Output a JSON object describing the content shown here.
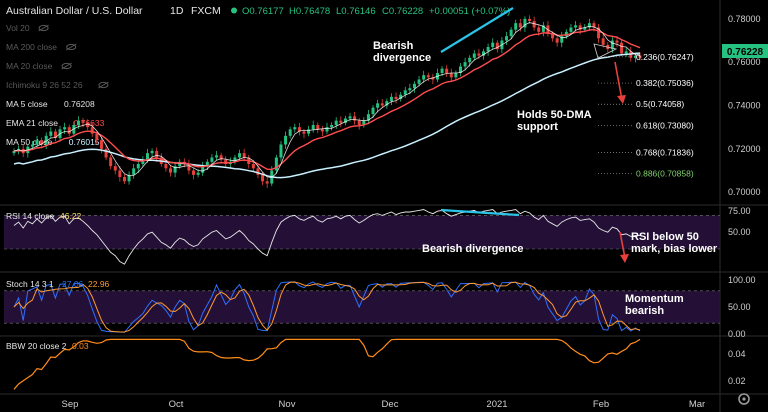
{
  "header": {
    "symbol": "Australian Dollar / U.S. Dollar",
    "interval": "1D",
    "exchange": "FXCM",
    "o": "O0.76177",
    "h": "H0.76478",
    "l": "L0.76146",
    "c": "C0.76228",
    "change": "+0.00051 (+0.07%)"
  },
  "indicators": [
    {
      "label": "Vol 20",
      "value": "",
      "color": "#555555",
      "hidden": true
    },
    {
      "label": "MA 200 close",
      "value": "",
      "color": "#555555",
      "hidden": true
    },
    {
      "label": "MA 20 close",
      "value": "",
      "color": "#555555",
      "hidden": true
    },
    {
      "label": "Ichimoku 9 26 52 26",
      "value": "",
      "color": "#555555",
      "hidden": true
    },
    {
      "label": "MA 5 close",
      "value": "0.76208",
      "color": "#e0e0e0",
      "hidden": false
    },
    {
      "label": "EMA 21 close",
      "value": "0.76633",
      "color": "#ff4d4d",
      "hidden": false
    },
    {
      "label": "MA 50 close",
      "value": "0.76015",
      "color": "#c8f0ff",
      "hidden": false
    }
  ],
  "annotations": {
    "bearish_top": "Bearish\ndivergence",
    "holds_50dma": "Holds 50-DMA\nsupport",
    "rsi_divergence": "Bearish divergence",
    "rsi_bias": "RSI below 50\nmark, bias lower",
    "stoch_bias": "Momentum\nbearish"
  },
  "price_badge": "0.76228",
  "colors": {
    "up": "#26c281",
    "down": "#e8413c",
    "ema21": "#ff4d4d",
    "ma50": "#c8f0ff",
    "ma5": "#ffffff",
    "rsi": "#e6e6e6",
    "stoch_k": "#2f6fff",
    "stoch_d": "#ff9a2e",
    "bbw": "#ff8c1a",
    "divergence": "#2bc4e8",
    "arrow": "#e8413c",
    "band": "#2a1340"
  },
  "chart_data": [
    {
      "type": "candlestick",
      "title": "Australian Dollar / U.S. Dollar 1D FXCM",
      "x_ticks": [
        "Sep",
        "Oct",
        "Nov",
        "Dec",
        "2021",
        "Feb",
        "Mar"
      ],
      "ylim": [
        0.695,
        0.785
      ],
      "y_ticks": [
        "0.78000",
        "0.76000",
        "0.74000",
        "0.72000",
        "0.70000"
      ],
      "close": [
        0.719,
        0.72,
        0.718,
        0.721,
        0.722,
        0.724,
        0.722,
        0.726,
        0.728,
        0.725,
        0.729,
        0.73,
        0.727,
        0.731,
        0.733,
        0.732,
        0.73,
        0.727,
        0.724,
        0.72,
        0.716,
        0.712,
        0.71,
        0.707,
        0.705,
        0.708,
        0.711,
        0.713,
        0.715,
        0.718,
        0.719,
        0.716,
        0.713,
        0.711,
        0.709,
        0.712,
        0.714,
        0.713,
        0.71,
        0.708,
        0.709,
        0.712,
        0.714,
        0.716,
        0.717,
        0.715,
        0.713,
        0.714,
        0.716,
        0.718,
        0.716,
        0.713,
        0.711,
        0.708,
        0.705,
        0.704,
        0.71,
        0.716,
        0.722,
        0.726,
        0.729,
        0.73,
        0.728,
        0.727,
        0.729,
        0.731,
        0.729,
        0.728,
        0.73,
        0.731,
        0.733,
        0.732,
        0.734,
        0.735,
        0.733,
        0.731,
        0.733,
        0.736,
        0.739,
        0.741,
        0.74,
        0.742,
        0.744,
        0.743,
        0.745,
        0.747,
        0.748,
        0.75,
        0.752,
        0.754,
        0.753,
        0.752,
        0.755,
        0.757,
        0.755,
        0.753,
        0.755,
        0.758,
        0.76,
        0.762,
        0.764,
        0.763,
        0.765,
        0.767,
        0.769,
        0.766,
        0.77,
        0.772,
        0.775,
        0.778,
        0.776,
        0.78,
        0.779,
        0.776,
        0.774,
        0.777,
        0.773,
        0.771,
        0.769,
        0.772,
        0.774,
        0.776,
        0.777,
        0.775,
        0.776,
        0.778,
        0.776,
        0.771,
        0.768,
        0.766,
        0.77,
        0.769,
        0.764,
        0.765,
        0.762,
        0.763,
        0.762
      ],
      "ema21_last": 0.76633,
      "ma50_last": 0.76015,
      "ma5_last": 0.76208,
      "fib_levels": [
        {
          "label": "0.236(0.76247)",
          "value": 0.76247,
          "color": "#ffffff"
        },
        {
          "label": "0.382(0.75036)",
          "value": 0.75036,
          "color": "#ffffff"
        },
        {
          "label": "0.5(0.74058)",
          "value": 0.74058,
          "color": "#ffffff"
        },
        {
          "label": "0.618(0.73080)",
          "value": 0.7308,
          "color": "#ffffff"
        },
        {
          "label": "0.768(0.71836)",
          "value": 0.71836,
          "color": "#ffffff"
        },
        {
          "label": "0.886(0.70858)",
          "value": 0.70858,
          "color": "#7fd16b"
        }
      ]
    },
    {
      "type": "line",
      "title": "RSI 14 close",
      "value_label": "46.22",
      "ylim": [
        5,
        80
      ],
      "y_ticks": [
        "75.00",
        "50.00"
      ],
      "band": [
        30,
        70
      ],
      "values": [
        58,
        62,
        55,
        63,
        60,
        66,
        61,
        67,
        70,
        63,
        68,
        69,
        60,
        66,
        67,
        63,
        58,
        52,
        47,
        40,
        33,
        26,
        22,
        15,
        12,
        22,
        30,
        37,
        42,
        48,
        50,
        44,
        38,
        35,
        31,
        38,
        43,
        41,
        36,
        33,
        35,
        42,
        46,
        50,
        52,
        47,
        42,
        44,
        48,
        52,
        47,
        40,
        36,
        30,
        25,
        22,
        38,
        52,
        62,
        66,
        69,
        70,
        66,
        64,
        67,
        69,
        64,
        62,
        66,
        67,
        69,
        66,
        69,
        70,
        65,
        61,
        64,
        68,
        71,
        72,
        70,
        72,
        74,
        71,
        73,
        74,
        74,
        75,
        76,
        77,
        74,
        72,
        75,
        76,
        72,
        69,
        71,
        73,
        74,
        75,
        76,
        73,
        75,
        76,
        77,
        72,
        74,
        75,
        76,
        77,
        72,
        75,
        73,
        68,
        65,
        70,
        63,
        60,
        57,
        62,
        65,
        67,
        68,
        64,
        65,
        66,
        62,
        55,
        52,
        50,
        56,
        54,
        47,
        48,
        45,
        46,
        46
      ]
    },
    {
      "type": "line",
      "title": "Stoch 14 3 1",
      "k_label": "27.06",
      "d_label": "22.96",
      "ylim": [
        0,
        100
      ],
      "y_ticks": [
        "100.00",
        "50.00",
        "0.00"
      ],
      "band": [
        20,
        80
      ]
    },
    {
      "type": "line",
      "title": "BBW 20 close 2",
      "value_label": "0.03",
      "ylim": [
        0.012,
        0.052
      ],
      "y_ticks": [
        "0.04",
        "0.02"
      ]
    }
  ]
}
